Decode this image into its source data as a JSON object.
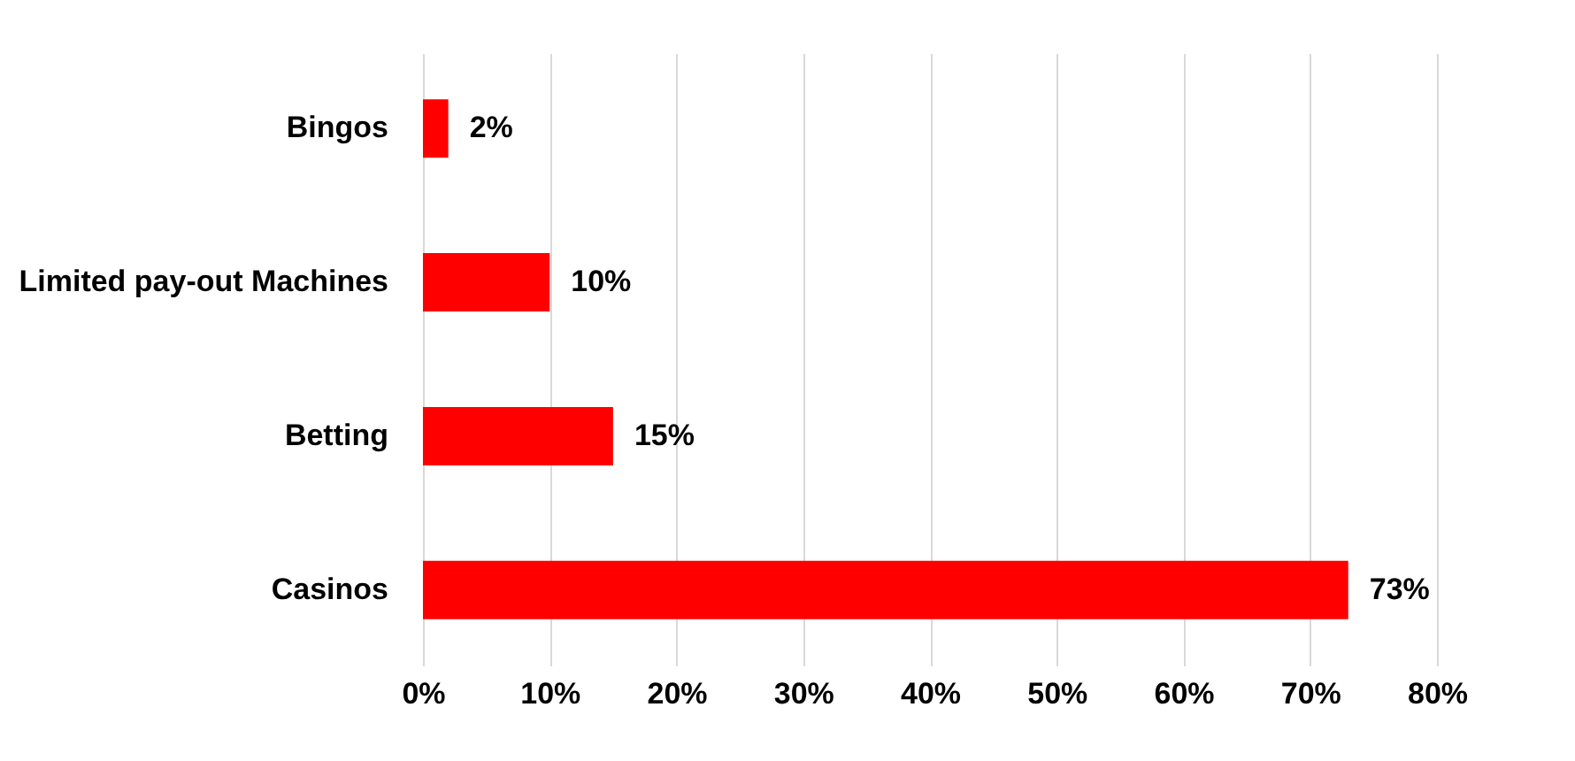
{
  "chart_data": {
    "type": "bar",
    "orientation": "horizontal",
    "categories": [
      "Bingos",
      "Limited pay-out Machines",
      "Betting",
      "Casinos"
    ],
    "values": [
      2,
      10,
      15,
      73
    ],
    "value_labels": [
      "2%",
      "10%",
      "15%",
      "73%"
    ],
    "color": "#ff0000",
    "xlim": [
      0,
      80
    ],
    "xticks": [
      {
        "value": 0,
        "label": "0%"
      },
      {
        "value": 10,
        "label": "10%"
      },
      {
        "value": 20,
        "label": "20%"
      },
      {
        "value": 30,
        "label": "30%"
      },
      {
        "value": 40,
        "label": "40%"
      },
      {
        "value": 50,
        "label": "50%"
      },
      {
        "value": 60,
        "label": "60%"
      },
      {
        "value": 70,
        "label": "70%"
      },
      {
        "value": 80,
        "label": "80%"
      }
    ],
    "grid": "x"
  }
}
